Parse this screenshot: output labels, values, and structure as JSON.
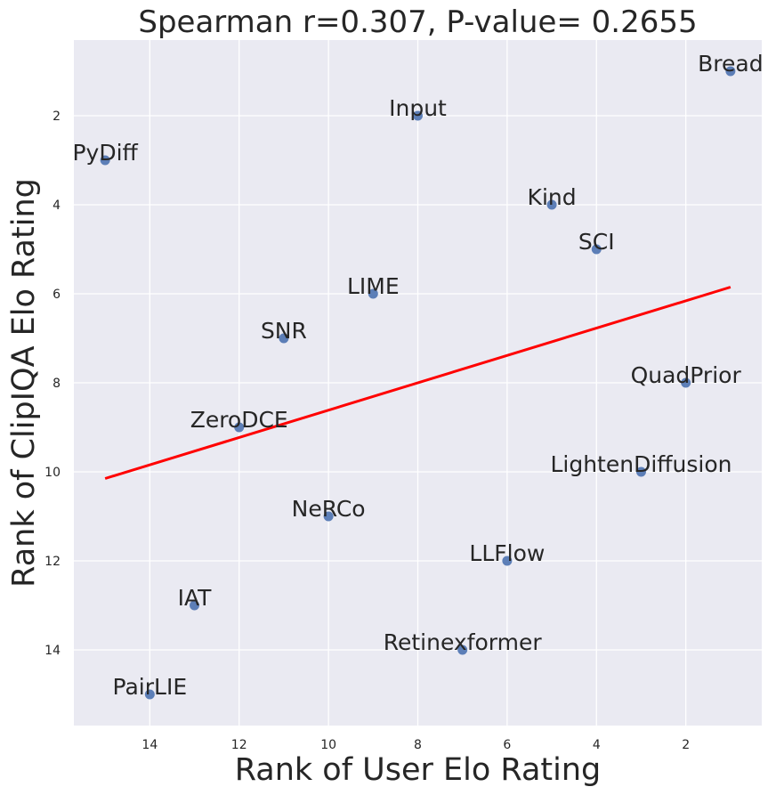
{
  "chart_data": {
    "type": "scatter",
    "title": "Spearman r=0.307, P-value= 0.2655",
    "xlabel": "Rank of User Elo Rating",
    "ylabel": "Rank of ClipIQA Elo Rating",
    "x_inverted": true,
    "y_inverted": true,
    "xlim": [
      15.7,
      0.3
    ],
    "ylim": [
      15.7,
      0.3
    ],
    "xticks": [
      14,
      12,
      10,
      8,
      6,
      4,
      2
    ],
    "yticks": [
      2,
      4,
      6,
      8,
      10,
      12,
      14
    ],
    "grid": true,
    "points": [
      {
        "label": "Bread",
        "x": 1,
        "y": 1
      },
      {
        "label": "Input",
        "x": 8,
        "y": 2
      },
      {
        "label": "PyDiff",
        "x": 15,
        "y": 3
      },
      {
        "label": "Kind",
        "x": 5,
        "y": 4
      },
      {
        "label": "SCI",
        "x": 4,
        "y": 5
      },
      {
        "label": "LIME",
        "x": 9,
        "y": 6
      },
      {
        "label": "SNR",
        "x": 11,
        "y": 7
      },
      {
        "label": "QuadPrior",
        "x": 2,
        "y": 8
      },
      {
        "label": "ZeroDCE",
        "x": 12,
        "y": 9
      },
      {
        "label": "LightenDiffusion",
        "x": 3,
        "y": 10
      },
      {
        "label": "NeRCo",
        "x": 10,
        "y": 11
      },
      {
        "label": "LLFlow",
        "x": 6,
        "y": 12
      },
      {
        "label": "IAT",
        "x": 13,
        "y": 13
      },
      {
        "label": "Retinexformer",
        "x": 7,
        "y": 14
      },
      {
        "label": "PairLIE",
        "x": 14,
        "y": 15
      }
    ],
    "fit_line": {
      "x": [
        15,
        1
      ],
      "y": [
        10.15,
        5.85
      ],
      "color": "#ff0000"
    },
    "colors": {
      "background": "#eaeaf2",
      "grid": "#ffffff",
      "point": "#4c72b0",
      "fit": "#ff0000"
    }
  }
}
